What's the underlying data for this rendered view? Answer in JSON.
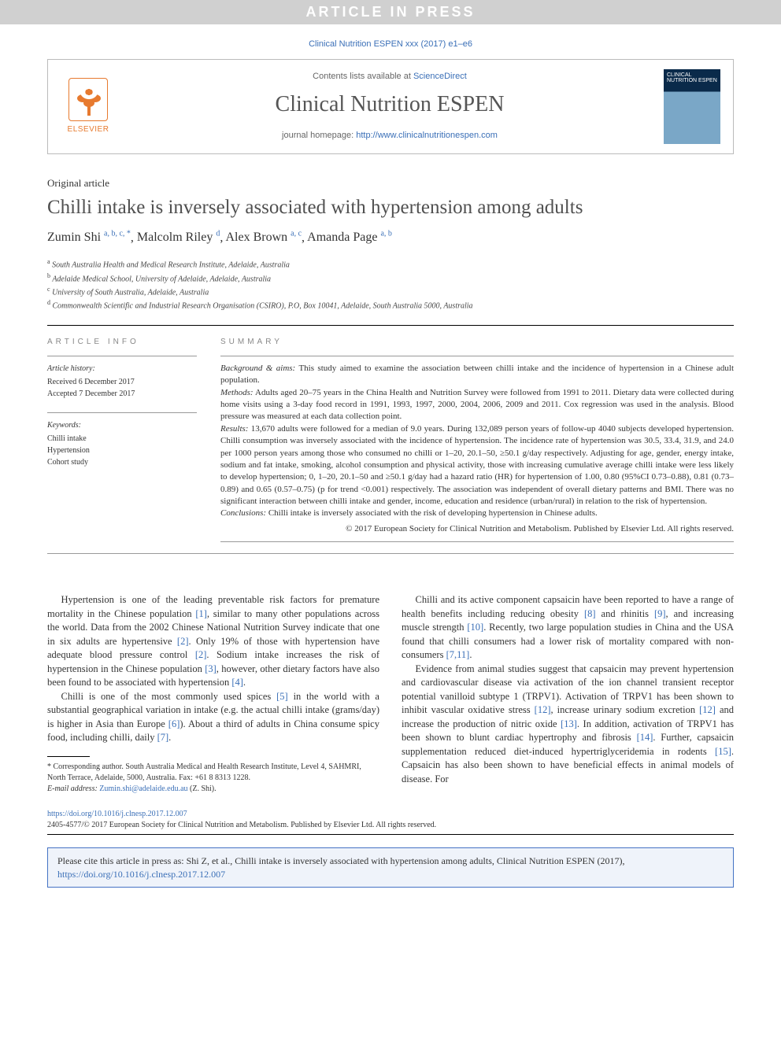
{
  "banner": "ARTICLE IN PRESS",
  "citation_top": "Clinical Nutrition ESPEN xxx (2017) e1–e6",
  "masthead": {
    "contents_prefix": "Contents lists available at ",
    "contents_link": "ScienceDirect",
    "journal_name": "Clinical Nutrition ESPEN",
    "homepage_prefix": "journal homepage: ",
    "homepage_url": "http://www.clinicalnutritionespen.com",
    "publisher": "ELSEVIER",
    "cover_text": "CLINICAL NUTRITION ESPEN"
  },
  "article_type": "Original article",
  "title": "Chilli intake is inversely associated with hypertension among adults",
  "authors": [
    {
      "name": "Zumin Shi",
      "sup": "a, b, c, *"
    },
    {
      "name": "Malcolm Riley",
      "sup": "d"
    },
    {
      "name": "Alex Brown",
      "sup": "a, c"
    },
    {
      "name": "Amanda Page",
      "sup": "a, b"
    }
  ],
  "affiliations": [
    {
      "sup": "a",
      "text": "South Australia Health and Medical Research Institute, Adelaide, Australia"
    },
    {
      "sup": "b",
      "text": "Adelaide Medical School, University of Adelaide, Adelaide, Australia"
    },
    {
      "sup": "c",
      "text": "University of South Australia, Adelaide, Australia"
    },
    {
      "sup": "d",
      "text": "Commonwealth Scientific and Industrial Research Organisation (CSIRO), P.O, Box 10041, Adelaide, South Australia 5000, Australia"
    }
  ],
  "article_info": {
    "heading": "ARTICLE INFO",
    "history_label": "Article history:",
    "received": "Received 6 December 2017",
    "accepted": "Accepted 7 December 2017",
    "keywords_label": "Keywords:",
    "keywords": [
      "Chilli intake",
      "Hypertension",
      "Cohort study"
    ]
  },
  "summary": {
    "heading": "SUMMARY",
    "background_label": "Background & aims:",
    "background": " This study aimed to examine the association between chilli intake and the incidence of hypertension in a Chinese adult population.",
    "methods_label": "Methods:",
    "methods": " Adults aged 20–75 years in the China Health and Nutrition Survey were followed from 1991 to 2011. Dietary data were collected during home visits using a 3-day food record in 1991, 1993, 1997, 2000, 2004, 2006, 2009 and 2011. Cox regression was used in the analysis. Blood pressure was measured at each data collection point.",
    "results_label": "Results:",
    "results": " 13,670 adults were followed for a median of 9.0 years. During 132,089 person years of follow-up 4040 subjects developed hypertension. Chilli consumption was inversely associated with the incidence of hypertension. The incidence rate of hypertension was 30.5, 33.4, 31.9, and 24.0 per 1000 person years among those who consumed no chilli or 1–20, 20.1–50, ≥50.1 g/day respectively. Adjusting for age, gender, energy intake, sodium and fat intake, smoking, alcohol consumption and physical activity, those with increasing cumulative average chilli intake were less likely to develop hypertension; 0, 1–20, 20.1–50 and ≥50.1 g/day had a hazard ratio (HR) for hypertension of 1.00, 0.80 (95%CI 0.73–0.88), 0.81 (0.73–0.89) and 0.65 (0.57–0.75) (p for trend <0.001) respectively. The association was independent of overall dietary patterns and BMI. There was no significant interaction between chilli intake and gender, income, education and residence (urban/rural) in relation to the risk of hypertension.",
    "conclusions_label": "Conclusions:",
    "conclusions": " Chilli intake is inversely associated with the risk of developing hypertension in Chinese adults.",
    "copyright": "© 2017 European Society for Clinical Nutrition and Metabolism. Published by Elsevier Ltd. All rights reserved."
  },
  "body": {
    "col1_p1": "Hypertension is one of the leading preventable risk factors for premature mortality in the Chinese population [1], similar to many other populations across the world. Data from the 2002 Chinese National Nutrition Survey indicate that one in six adults are hypertensive [2]. Only 19% of those with hypertension have adequate blood pressure control [2]. Sodium intake increases the risk of hypertension in the Chinese population [3], however, other dietary factors have also been found to be associated with hypertension [4].",
    "col1_p2": "Chilli is one of the most commonly used spices [5] in the world with a substantial geographical variation in intake (e.g. the actual chilli intake (grams/day) is higher in Asia than Europe [6]). About a third of adults in China consume spicy food, including chilli, daily [7].",
    "col2_p1": "Chilli and its active component capsaicin have been reported to have a range of health benefits including reducing obesity [8] and rhinitis [9], and increasing muscle strength [10]. Recently, two large population studies in China and the USA found that chilli consumers had a lower risk of mortality compared with non-consumers [7,11].",
    "col2_p2": "Evidence from animal studies suggest that capsaicin may prevent hypertension and cardiovascular disease via activation of the ion channel transient receptor potential vanilloid subtype 1 (TRPV1). Activation of TRPV1 has been shown to inhibit vascular oxidative stress [12], increase urinary sodium excretion [12] and increase the production of nitric oxide [13]. In addition, activation of TRPV1 has been shown to blunt cardiac hypertrophy and fibrosis [14]. Further, capsaicin supplementation reduced diet-induced hypertriglyceridemia in rodents [15]. Capsaicin has also been shown to have beneficial effects in animal models of disease. For"
  },
  "footnote": {
    "corr": "* Corresponding author. South Australia Medical and Health Research Institute, Level 4, SAHMRI, North Terrace, Adelaide, 5000, Australia. Fax: +61 8 8313 1228.",
    "email_label": "E-mail address: ",
    "email": "Zumin.shi@adelaide.edu.au",
    "email_suffix": " (Z. Shi)."
  },
  "doi": {
    "url": "https://doi.org/10.1016/j.clnesp.2017.12.007",
    "line": "2405-4577/© 2017 European Society for Clinical Nutrition and Metabolism. Published by Elsevier Ltd. All rights reserved."
  },
  "cite_box": {
    "text": "Please cite this article in press as: Shi Z, et al., Chilli intake is inversely associated with hypertension among adults, Clinical Nutrition ESPEN (2017), ",
    "url": "https://doi.org/10.1016/j.clnesp.2017.12.007"
  },
  "colors": {
    "link": "#3a6fb7",
    "banner_bg": "#d0d0d0",
    "elsevier": "#e77a2f",
    "citebox_border": "#4472c4",
    "citebox_bg": "#eff3fa"
  }
}
